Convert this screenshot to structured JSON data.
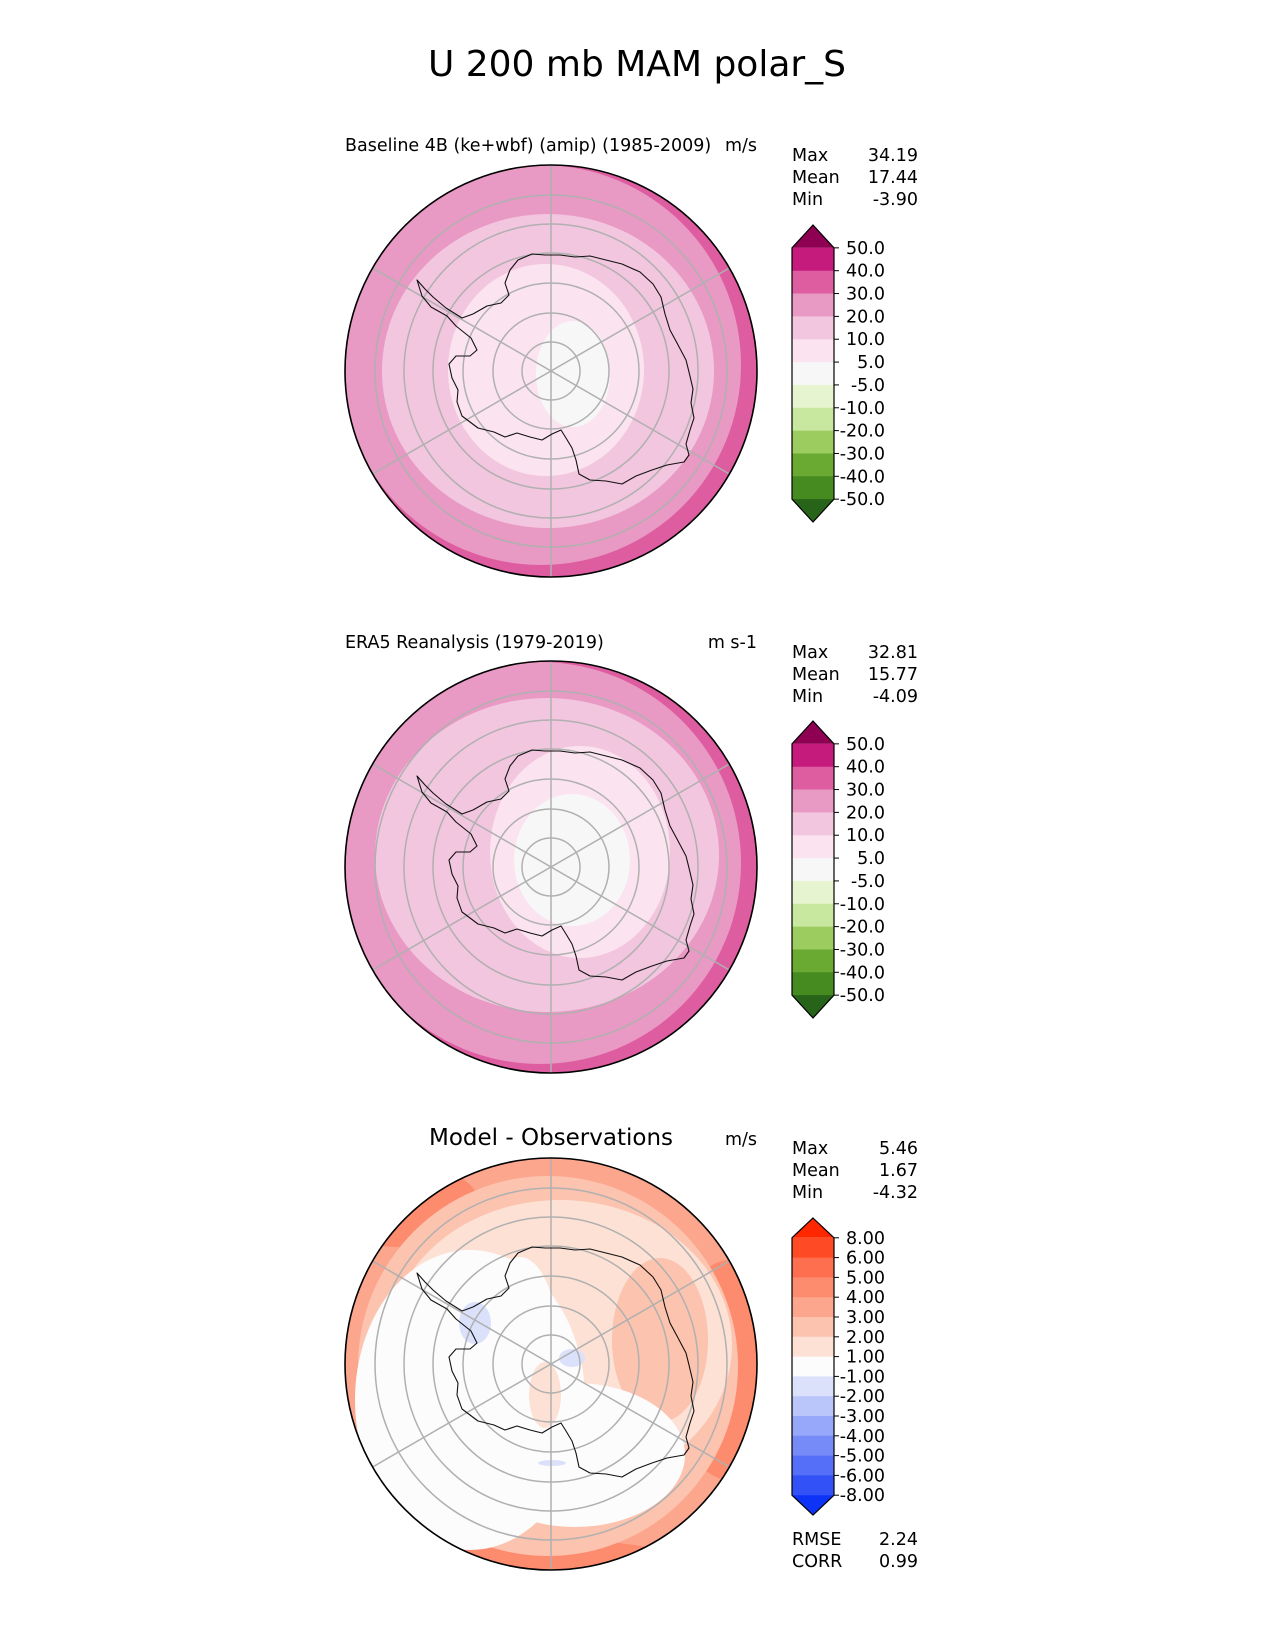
{
  "figure": {
    "title": "U 200 mb MAM polar_S"
  },
  "colors": {
    "coast": "#111111",
    "grid": "#b0b0b0"
  },
  "chart_data": [
    {
      "type": "heatmap",
      "projection": "south-polar-stereographic",
      "title": "Baseline 4B (ke+wbf) (amip) (1985-2009)",
      "units": "m/s",
      "stats": [
        {
          "label": "Max",
          "value": "34.19"
        },
        {
          "label": "Mean",
          "value": "17.44"
        },
        {
          "label": "Min",
          "value": "-3.90"
        }
      ],
      "colorbar": {
        "ticks": [
          "50.0",
          "40.0",
          "30.0",
          "20.0",
          "10.0",
          "5.0",
          "-5.0",
          "-10.0",
          "-20.0",
          "-30.0",
          "-40.0",
          "-50.0"
        ],
        "colors": [
          "#8e0152",
          "#c51b7d",
          "#de5da0",
          "#e899c4",
          "#f3c6df",
          "#fbe4ef",
          "#f7f7f7",
          "#e6f5d0",
          "#c8e8a0",
          "#9ccc5f",
          "#6aaa32",
          "#458b20",
          "#276419"
        ],
        "extend": "both"
      },
      "field_regions": [
        {
          "value_range": "30 to 40",
          "where": "outer ring, southeast edge"
        },
        {
          "value_range": "20 to 30",
          "where": "outer ring"
        },
        {
          "value_range": "10 to 20",
          "where": "middle ring"
        },
        {
          "value_range": "5 to 10",
          "where": "inner ring over Antarctica"
        },
        {
          "value_range": "-5 to 5",
          "where": "polar core"
        }
      ]
    },
    {
      "type": "heatmap",
      "projection": "south-polar-stereographic",
      "title": "ERA5 Reanalysis (1979-2019)",
      "units": "m s-1",
      "stats": [
        {
          "label": "Max",
          "value": "32.81"
        },
        {
          "label": "Mean",
          "value": "15.77"
        },
        {
          "label": "Min",
          "value": "-4.09"
        }
      ],
      "colorbar": {
        "ticks": [
          "50.0",
          "40.0",
          "30.0",
          "20.0",
          "10.0",
          "5.0",
          "-5.0",
          "-10.0",
          "-20.0",
          "-30.0",
          "-40.0",
          "-50.0"
        ],
        "colors": [
          "#8e0152",
          "#c51b7d",
          "#de5da0",
          "#e899c4",
          "#f3c6df",
          "#fbe4ef",
          "#f7f7f7",
          "#e6f5d0",
          "#c8e8a0",
          "#9ccc5f",
          "#6aaa32",
          "#458b20",
          "#276419"
        ],
        "extend": "both"
      },
      "field_regions": [
        {
          "value_range": "30 to 40",
          "where": "outer ring, east edge"
        },
        {
          "value_range": "20 to 30",
          "where": "outer ring"
        },
        {
          "value_range": "10 to 20",
          "where": "middle ring"
        },
        {
          "value_range": "5 to 10",
          "where": "inner ring over Antarctica"
        },
        {
          "value_range": "-5 to 5",
          "where": "polar core"
        }
      ]
    },
    {
      "type": "heatmap",
      "projection": "south-polar-stereographic",
      "title": "Model - Observations",
      "units": "m/s",
      "stats": [
        {
          "label": "Max",
          "value": "5.46"
        },
        {
          "label": "Mean",
          "value": "1.67"
        },
        {
          "label": "Min",
          "value": "-4.32"
        }
      ],
      "colorbar": {
        "ticks": [
          "8.00",
          "6.00",
          "5.00",
          "4.00",
          "3.00",
          "2.00",
          "1.00",
          "-1.00",
          "-2.00",
          "-3.00",
          "-4.00",
          "-5.00",
          "-6.00",
          "-8.00"
        ],
        "colors": [
          "#fe2700",
          "#fe4a25",
          "#fd6f4e",
          "#fd8b6e",
          "#fca68e",
          "#fcc3af",
          "#fde1d5",
          "#fcfcfc",
          "#dbe1fb",
          "#bac5fa",
          "#97a7f9",
          "#768bf8",
          "#556ff8",
          "#3251f7",
          "#0d33f7"
        ],
        "extend": "both"
      },
      "field_regions": [
        {
          "value_range": "4 to 6",
          "where": "east and northwest outer edge"
        },
        {
          "value_range": "2 to 4",
          "where": "outer ring"
        },
        {
          "value_range": "1 to 2",
          "where": "middle ring"
        },
        {
          "value_range": "-1 to 1",
          "where": "west and south over Antarctica"
        },
        {
          "value_range": "-2 to -1",
          "where": "small patches near the pole and the peninsula"
        }
      ],
      "metrics": [
        {
          "label": "RMSE",
          "value": "2.24"
        },
        {
          "label": "CORR",
          "value": "0.99"
        }
      ]
    }
  ]
}
